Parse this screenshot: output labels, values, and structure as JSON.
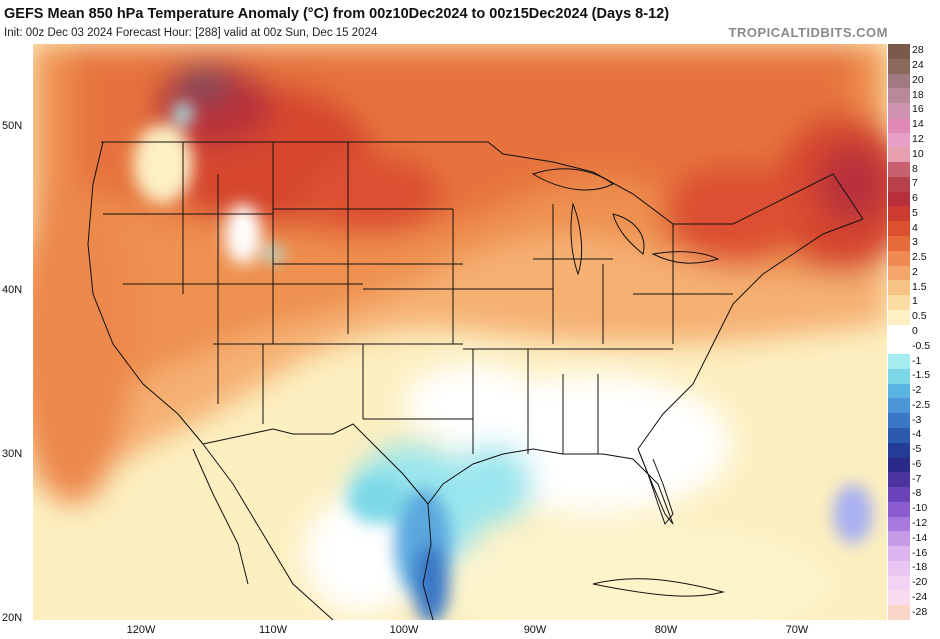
{
  "header": {
    "title": "GEFS Mean 850 hPa Temperature Anomaly (°C) from 00z10Dec2024 to 00z15Dec2024 (Days 8-12)",
    "subtitle": "Init: 00z Dec 03 2024   Forecast Hour: [288]   valid at 00z Sun, Dec 15 2024",
    "brand": "TROPICALTIDBITS.COM"
  },
  "axes": {
    "lat_labels": [
      "50N",
      "40N",
      "30N",
      "20N"
    ],
    "lon_labels": [
      "120W",
      "110W",
      "100W",
      "90W",
      "80W",
      "70W"
    ]
  },
  "colorbar": {
    "levels": [
      {
        "label": "28",
        "color": "#7a5a4a"
      },
      {
        "label": "24",
        "color": "#8a6a5a"
      },
      {
        "label": "20",
        "color": "#a07a80"
      },
      {
        "label": "18",
        "color": "#b88a98"
      },
      {
        "label": "16",
        "color": "#d094b0"
      },
      {
        "label": "14",
        "color": "#e08ab8"
      },
      {
        "label": "12",
        "color": "#e8a0c8"
      },
      {
        "label": "10",
        "color": "#e6a0b0"
      },
      {
        "label": "8",
        "color": "#c86070"
      },
      {
        "label": "7",
        "color": "#b8404a"
      },
      {
        "label": "6",
        "color": "#b8303a"
      },
      {
        "label": "5",
        "color": "#cc3a30"
      },
      {
        "label": "4",
        "color": "#dc5030"
      },
      {
        "label": "3",
        "color": "#e66a3c"
      },
      {
        "label": "2.5",
        "color": "#ee8a52"
      },
      {
        "label": "2",
        "color": "#f4a66a"
      },
      {
        "label": "1.5",
        "color": "#f8c484"
      },
      {
        "label": "1",
        "color": "#fbdca2"
      },
      {
        "label": "0.5",
        "color": "#fdf0c4"
      },
      {
        "label": "0",
        "color": "#ffffff"
      },
      {
        "label": "-0.5",
        "color": "#ffffff"
      },
      {
        "label": "-1",
        "color": "#a4ecee"
      },
      {
        "label": "-1.5",
        "color": "#7cd8e6"
      },
      {
        "label": "-2",
        "color": "#5ab4e0"
      },
      {
        "label": "-2.5",
        "color": "#4a96d6"
      },
      {
        "label": "-3",
        "color": "#3a78c6"
      },
      {
        "label": "-4",
        "color": "#2c5ab0"
      },
      {
        "label": "-5",
        "color": "#233c98"
      },
      {
        "label": "-6",
        "color": "#2a2a88"
      },
      {
        "label": "-7",
        "color": "#4c34a0"
      },
      {
        "label": "-8",
        "color": "#6a44b8"
      },
      {
        "label": "-10",
        "color": "#8a5cd0"
      },
      {
        "label": "-12",
        "color": "#a878dc"
      },
      {
        "label": "-14",
        "color": "#c69ae6"
      },
      {
        "label": "-16",
        "color": "#dcb4ee"
      },
      {
        "label": "-18",
        "color": "#eac6f2"
      },
      {
        "label": "-20",
        "color": "#f2d4f4"
      },
      {
        "label": "-24",
        "color": "#f6dcee"
      },
      {
        "label": "-28",
        "color": "#fbd6c8"
      }
    ]
  },
  "colors": {
    "ocean_pale": "#fcefc0",
    "ocean_light": "#f8d39a",
    "warm_orange": "#f0a062",
    "hot_orange": "#e6733e",
    "hot_red": "#d6462f",
    "deep_red": "#b8303a",
    "max_purple": "#7a4a5a",
    "neutral": "#ffffff",
    "cool_cyan": "#9ae6ee",
    "cool_blue": "#5aa8de",
    "cold_blue": "#2c5ab0",
    "border": "#111111"
  }
}
